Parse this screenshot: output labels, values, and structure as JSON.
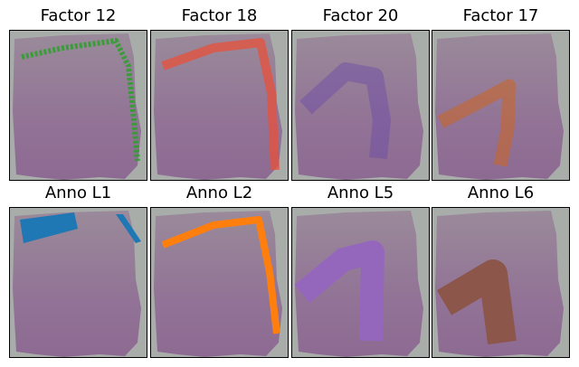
{
  "panels": [
    {
      "title": "Factor 12",
      "color": "#2ca02c"
    },
    {
      "title": "Factor 18",
      "color": "#e8503a"
    },
    {
      "title": "Factor 20",
      "color": "#6a4aa8"
    },
    {
      "title": "Factor 17",
      "color": "#c8662a"
    },
    {
      "title": "Anno L1",
      "color": "#1f77b4"
    },
    {
      "title": "Anno L2",
      "color": "#ff7f0e"
    },
    {
      "title": "Anno L5",
      "color": "#9467bd"
    },
    {
      "title": "Anno L6",
      "color": "#8c564b"
    }
  ]
}
